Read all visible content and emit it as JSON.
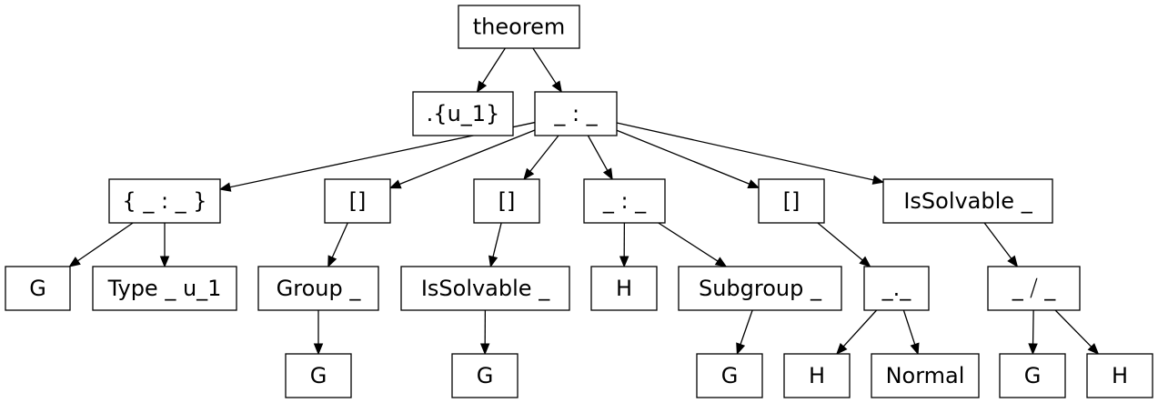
{
  "diagram": {
    "type": "tree",
    "nodes": [
      {
        "id": "n0",
        "label": "theorem"
      },
      {
        "id": "n1",
        "label": ".{u_1}"
      },
      {
        "id": "n2",
        "label": "_ : _"
      },
      {
        "id": "n3",
        "label": "{ _ : _ }"
      },
      {
        "id": "n4",
        "label": "[]"
      },
      {
        "id": "n5",
        "label": "[]"
      },
      {
        "id": "n6",
        "label": "_ : _"
      },
      {
        "id": "n7",
        "label": "[]"
      },
      {
        "id": "n8",
        "label": "IsSolvable _"
      },
      {
        "id": "n9",
        "label": "G"
      },
      {
        "id": "n10",
        "label": "Type _ u_1"
      },
      {
        "id": "n11",
        "label": "Group _"
      },
      {
        "id": "n12",
        "label": "IsSolvable _"
      },
      {
        "id": "n13",
        "label": "H"
      },
      {
        "id": "n14",
        "label": "Subgroup _"
      },
      {
        "id": "n15",
        "label": "_._"
      },
      {
        "id": "n16",
        "label": "_ ⧸ _"
      },
      {
        "id": "n17",
        "label": "G"
      },
      {
        "id": "n18",
        "label": "G"
      },
      {
        "id": "n19",
        "label": "G"
      },
      {
        "id": "n20",
        "label": "H"
      },
      {
        "id": "n21",
        "label": "Normal"
      },
      {
        "id": "n22",
        "label": "G"
      },
      {
        "id": "n23",
        "label": "H"
      }
    ],
    "edges": [
      [
        "n0",
        "n1"
      ],
      [
        "n0",
        "n2"
      ],
      [
        "n2",
        "n3"
      ],
      [
        "n2",
        "n4"
      ],
      [
        "n2",
        "n5"
      ],
      [
        "n2",
        "n6"
      ],
      [
        "n2",
        "n7"
      ],
      [
        "n2",
        "n8"
      ],
      [
        "n3",
        "n9"
      ],
      [
        "n3",
        "n10"
      ],
      [
        "n4",
        "n11"
      ],
      [
        "n5",
        "n12"
      ],
      [
        "n6",
        "n13"
      ],
      [
        "n6",
        "n14"
      ],
      [
        "n7",
        "n15"
      ],
      [
        "n8",
        "n16"
      ],
      [
        "n11",
        "n17"
      ],
      [
        "n12",
        "n18"
      ],
      [
        "n14",
        "n19"
      ],
      [
        "n15",
        "n20"
      ],
      [
        "n15",
        "n21"
      ],
      [
        "n16",
        "n22"
      ],
      [
        "n16",
        "n23"
      ]
    ]
  }
}
